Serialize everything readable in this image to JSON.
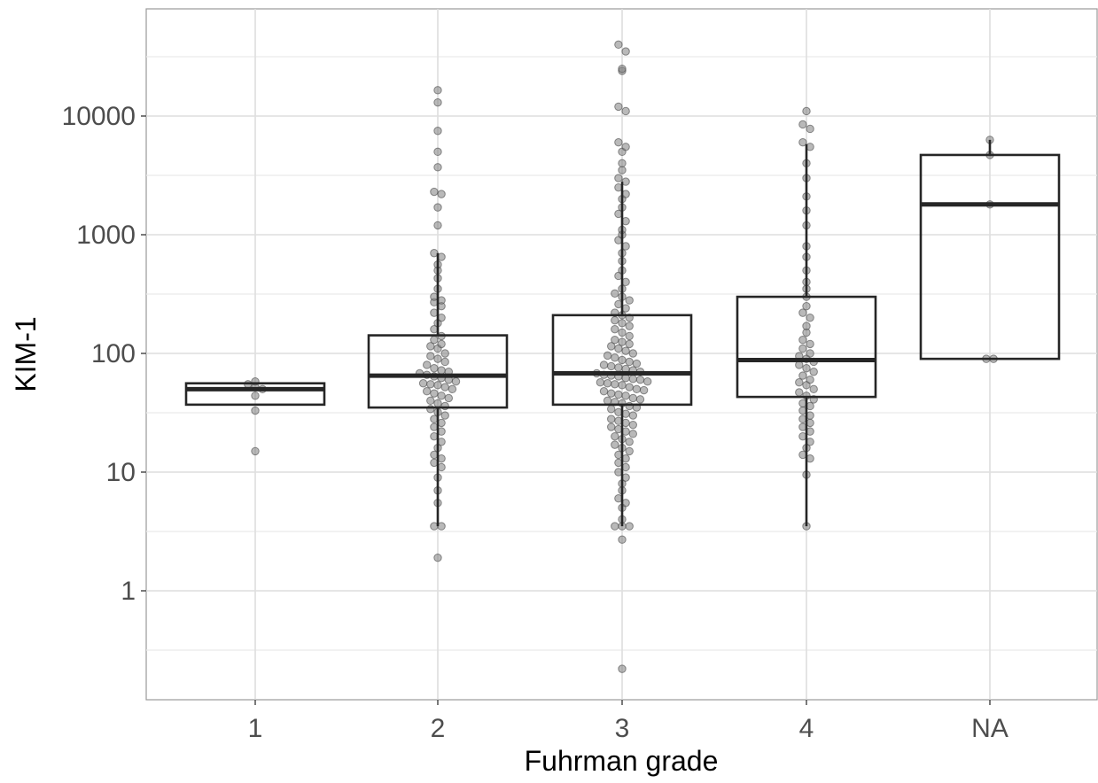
{
  "chart_data": {
    "type": "box",
    "xlabel": "Fuhrman grade",
    "ylabel": "KIM-1",
    "yscale": "log10",
    "ylim": [
      0.12,
      65000
    ],
    "grid": true,
    "y_ticks": [
      {
        "value": 1,
        "label": "1"
      },
      {
        "value": 10,
        "label": "10"
      },
      {
        "value": 100,
        "label": "100"
      },
      {
        "value": 1000,
        "label": "1000"
      },
      {
        "value": 10000,
        "label": "10000"
      }
    ],
    "categories": [
      "1",
      "2",
      "3",
      "4",
      "NA"
    ],
    "boxes": [
      {
        "category": "1",
        "lower_whisker": 37,
        "q1": 37,
        "median": 50,
        "q3": 56,
        "upper_whisker": 56
      },
      {
        "category": "2",
        "lower_whisker": 3.5,
        "q1": 35,
        "median": 65,
        "q3": 142,
        "upper_whisker": 700
      },
      {
        "category": "3",
        "lower_whisker": 3.5,
        "q1": 37,
        "median": 68,
        "q3": 210,
        "upper_whisker": 2800
      },
      {
        "category": "4",
        "lower_whisker": 3.5,
        "q1": 43,
        "median": 88,
        "q3": 300,
        "upper_whisker": 5800
      },
      {
        "category": "NA",
        "lower_whisker": 90,
        "q1": 90,
        "median": 1800,
        "q3": 4700,
        "upper_whisker": 6300
      }
    ],
    "points": [
      {
        "category": "1",
        "values": [
          58,
          55,
          52,
          50,
          44,
          33,
          15
        ]
      },
      {
        "category": "2",
        "values": [
          16500,
          13000,
          7500,
          5000,
          3700,
          2300,
          2200,
          1700,
          1200,
          700,
          650,
          560,
          500,
          430,
          350,
          300,
          280,
          270,
          250,
          220,
          200,
          180,
          160,
          140,
          130,
          120,
          115,
          110,
          100,
          95,
          90,
          85,
          80,
          75,
          72,
          70,
          68,
          66,
          64,
          62,
          60,
          58,
          56,
          55,
          54,
          52,
          50,
          48,
          46,
          44,
          42,
          40,
          38,
          36,
          34,
          32,
          30,
          28,
          26,
          24,
          22,
          20,
          18,
          16,
          14,
          13,
          12,
          11,
          9,
          7,
          5.5,
          3.5,
          3.5,
          1.9
        ]
      },
      {
        "category": "3",
        "values": [
          40000,
          35000,
          25000,
          24000,
          12000,
          11000,
          6000,
          5500,
          5000,
          4000,
          3500,
          3000,
          2800,
          2500,
          2200,
          2000,
          1700,
          1500,
          1300,
          1100,
          1000,
          900,
          800,
          700,
          600,
          500,
          450,
          400,
          350,
          320,
          300,
          280,
          260,
          240,
          220,
          210,
          200,
          190,
          180,
          170,
          160,
          150,
          140,
          130,
          125,
          120,
          115,
          110,
          105,
          100,
          96,
          92,
          88,
          85,
          82,
          80,
          78,
          76,
          74,
          72,
          70,
          68,
          66,
          65,
          64,
          62,
          61,
          60,
          58,
          57,
          56,
          55,
          54,
          52,
          50,
          49,
          48,
          46,
          45,
          44,
          42,
          41,
          40,
          39,
          38,
          36,
          35,
          34,
          32,
          31,
          30,
          28,
          27,
          26,
          25,
          24,
          23,
          22,
          21,
          20,
          19,
          18,
          17,
          16,
          15,
          14,
          13,
          12,
          11,
          10,
          9,
          8,
          7,
          6,
          5.5,
          5,
          4,
          3.5,
          3.5,
          3.5,
          2.7,
          0.22
        ]
      },
      {
        "category": "4",
        "values": [
          11000,
          8500,
          7800,
          6000,
          5500,
          4000,
          3000,
          2100,
          1600,
          1200,
          800,
          650,
          500,
          400,
          350,
          300,
          250,
          220,
          200,
          170,
          150,
          130,
          120,
          110,
          100,
          95,
          90,
          85,
          80,
          75,
          70,
          65,
          60,
          57,
          54,
          50,
          47,
          44,
          41,
          38,
          36,
          33,
          30,
          28,
          26,
          24,
          22,
          20,
          18,
          16,
          14,
          13,
          9.5,
          3.5
        ]
      },
      {
        "category": "NA",
        "values": [
          6300,
          4700,
          1800,
          90,
          90
        ]
      }
    ]
  }
}
